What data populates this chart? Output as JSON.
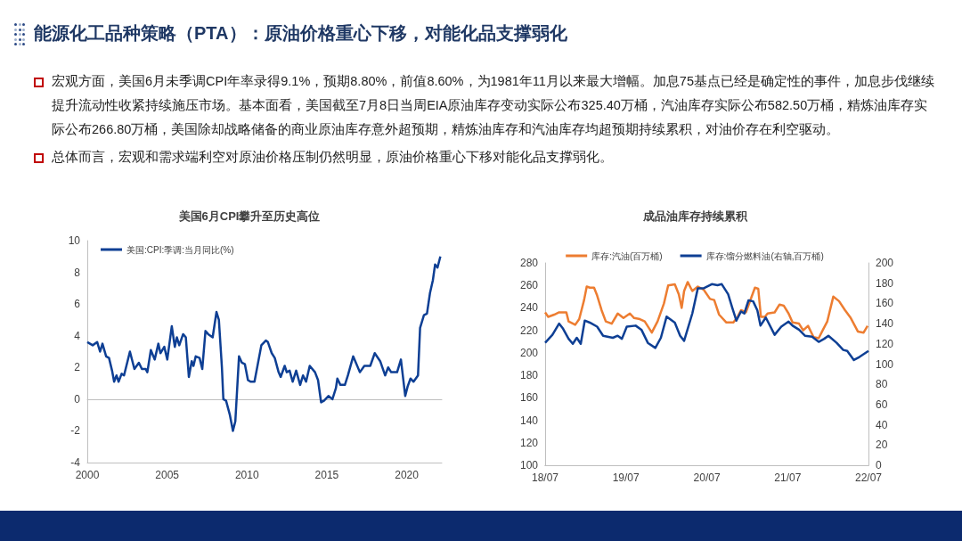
{
  "chart_data": [
    {
      "type": "other",
      "title": "能源化工品种策略（PTA）：原油价格重心下移，对能化品支撑弱化",
      "annotations": [
        "宏观方面，美国6月未季调CPI年率录得9.1%，预期8.80%，前值8.60%，为1981年11月以来最大增幅。加息75基点已经是确定性的事件，加息步伐继续提升流动性收紧持续施压市场。基本面看，美国截至7月8日当周EIA原油库存变动实际公布325.40万桶，汽油库存实际公布582.50万桶，精炼油库存实际公布266.80万桶，美国除却战略储备的商业原油库存意外超预期，精炼油库存和汽油库存均超预期持续累积，对油价存在利空驱动。",
        "总体而言，宏观和需求端利空对原油价格压制仍然明显，原油价格重心下移对能化品支撑弱化。"
      ]
    },
    {
      "type": "line",
      "title": "美国6月CPI攀升至历史高位",
      "legend": "top left",
      "marker": "none",
      "xlim": [
        2000,
        2022.2
      ],
      "xticks": [
        2000,
        2005,
        2010,
        2015,
        2020
      ],
      "ylim": [
        -4,
        10
      ],
      "yticks": [
        -4,
        -2,
        0,
        2,
        4,
        6,
        8,
        10
      ],
      "x": [
        2000.0,
        2000.34,
        2000.62,
        2000.8,
        2000.95,
        2001.18,
        2001.36,
        2001.55,
        2001.68,
        2001.83,
        2001.96,
        2002.15,
        2002.3,
        2002.67,
        2002.95,
        2003.23,
        2003.42,
        2003.66,
        2003.76,
        2003.98,
        2004.22,
        2004.45,
        2004.58,
        2004.82,
        2005.01,
        2005.29,
        2005.48,
        2005.61,
        2005.76,
        2006.0,
        2006.17,
        2006.36,
        2006.54,
        2006.65,
        2006.79,
        2007.03,
        2007.2,
        2007.4,
        2007.57,
        2007.85,
        2008.09,
        2008.24,
        2008.43,
        2008.52,
        2008.69,
        2008.93,
        2009.12,
        2009.27,
        2009.5,
        2009.68,
        2009.87,
        2010.06,
        2010.24,
        2010.47,
        2010.9,
        2011.18,
        2011.31,
        2011.55,
        2011.74,
        2011.98,
        2012.11,
        2012.36,
        2012.49,
        2012.67,
        2012.86,
        2013.08,
        2013.33,
        2013.51,
        2013.7,
        2013.93,
        2014.26,
        2014.45,
        2014.64,
        2014.82,
        2015.1,
        2015.35,
        2015.57,
        2015.66,
        2015.85,
        2016.13,
        2016.32,
        2016.65,
        2017.07,
        2017.35,
        2017.72,
        2018.0,
        2018.34,
        2018.65,
        2018.84,
        2019.03,
        2019.4,
        2019.64,
        2019.91,
        2020.06,
        2020.24,
        2020.43,
        2020.71,
        2020.84,
        2021.08,
        2021.27,
        2021.46,
        2021.64,
        2021.78,
        2021.93,
        2022.11
      ],
      "series": [
        {
          "name": "美国:CPI:季调:当月同比(%)",
          "color": "#0e3f94",
          "values": [
            3.6,
            3.4,
            3.6,
            3.0,
            3.5,
            2.7,
            2.6,
            1.8,
            1.1,
            1.5,
            1.1,
            1.6,
            1.5,
            3.0,
            1.9,
            2.3,
            1.9,
            1.9,
            1.7,
            3.1,
            2.5,
            3.5,
            2.9,
            3.3,
            2.5,
            4.6,
            3.3,
            3.9,
            3.4,
            4.1,
            3.9,
            1.4,
            2.4,
            2.1,
            2.7,
            2.6,
            1.9,
            4.3,
            4.1,
            3.9,
            5.5,
            5.0,
            2.0,
            0.0,
            -0.1,
            -1.0,
            -2.0,
            -1.4,
            2.7,
            2.3,
            2.2,
            1.2,
            1.1,
            1.1,
            3.4,
            3.7,
            3.6,
            2.9,
            2.6,
            1.7,
            1.4,
            2.1,
            1.7,
            1.8,
            1.1,
            1.8,
            0.9,
            1.5,
            1.1,
            2.1,
            1.7,
            1.2,
            -0.2,
            -0.1,
            0.2,
            0.0,
            0.7,
            1.3,
            0.9,
            0.9,
            1.5,
            2.7,
            1.7,
            2.1,
            2.1,
            2.9,
            2.4,
            1.5,
            2.0,
            1.7,
            1.7,
            2.5,
            0.2,
            0.8,
            1.3,
            1.1,
            1.5,
            4.5,
            5.3,
            5.4,
            6.7,
            7.5,
            8.5,
            8.3,
            9.0
          ]
        }
      ]
    },
    {
      "type": "line",
      "title": "成品油库存持续累积",
      "legend": "top",
      "marker": "none",
      "xlim": [
        "2018-07-01",
        "2022-07-01"
      ],
      "xticks": [
        {
          "value": "2018-07-01",
          "label": "18/07"
        },
        {
          "value": "2019-07-01",
          "label": "19/07"
        },
        {
          "value": "2020-07-01",
          "label": "20/07"
        },
        {
          "value": "2021-07-01",
          "label": "21/07"
        },
        {
          "value": "2022-07-01",
          "label": "22/07"
        }
      ],
      "ylim": [
        100,
        280
      ],
      "yticks": [
        100,
        120,
        140,
        160,
        180,
        200,
        220,
        240,
        260,
        280
      ],
      "y2lim": [
        0,
        200
      ],
      "y2ticks": [
        0,
        20,
        40,
        60,
        80,
        100,
        120,
        140,
        160,
        180,
        200
      ],
      "series": [
        {
          "name": "库存:汽油(百万桶)",
          "color": "#ed7d31",
          "x": [
            "2018-07-01",
            "2018-07-15",
            "2018-08-11",
            "2018-09-02",
            "2018-09-20",
            "2018-10-05",
            "2018-10-15",
            "2018-11-14",
            "2018-12-02",
            "2018-12-24",
            "2019-01-05",
            "2019-01-19",
            "2019-02-07",
            "2019-02-21",
            "2019-03-13",
            "2019-04-01",
            "2019-04-28",
            "2019-05-25",
            "2019-06-20",
            "2019-07-19",
            "2019-08-07",
            "2019-09-02",
            "2019-09-24",
            "2019-10-26",
            "2019-11-21",
            "2019-12-20",
            "2020-01-08",
            "2020-02-07",
            "2020-02-25",
            "2020-03-09",
            "2020-03-20",
            "2020-04-05",
            "2020-04-26",
            "2020-05-21",
            "2020-06-17",
            "2020-07-15",
            "2020-08-03",
            "2020-08-25",
            "2020-09-27",
            "2020-10-28",
            "2020-11-14",
            "2020-12-02",
            "2020-12-24",
            "2021-02-03",
            "2021-02-18",
            "2021-03-02",
            "2021-03-20",
            "2021-04-01",
            "2021-05-03",
            "2021-05-25",
            "2021-06-13",
            "2021-07-05",
            "2021-07-23",
            "2021-08-21",
            "2021-09-09",
            "2021-10-01",
            "2021-10-26",
            "2021-11-18",
            "2021-12-06",
            "2021-12-27",
            "2022-01-23",
            "2022-02-18",
            "2022-03-17",
            "2022-04-12",
            "2022-05-14",
            "2022-06-09",
            "2022-06-27"
          ],
          "values": [
            236,
            232,
            234,
            236,
            236,
            236,
            228,
            225,
            230,
            247,
            259,
            258,
            258,
            251,
            238,
            228,
            226,
            235,
            231,
            235,
            231,
            230,
            228,
            218,
            228,
            244,
            260,
            261,
            252,
            240,
            255,
            263,
            255,
            259,
            256,
            248,
            247,
            234,
            227,
            227,
            231,
            238,
            236,
            258,
            257,
            232,
            232,
            235,
            236,
            243,
            242,
            235,
            227,
            226,
            220,
            224,
            214,
            213,
            220,
            228,
            250,
            246,
            238,
            231,
            219,
            218,
            224
          ]
        },
        {
          "name": "库存:馏分燃料油(右轴,百万桶)",
          "color": "#0e3f94",
          "axis": "y2",
          "x": [
            "2018-07-01",
            "2018-08-03",
            "2018-09-02",
            "2018-09-20",
            "2018-10-15",
            "2018-11-03",
            "2018-11-21",
            "2018-12-09",
            "2018-12-27",
            "2019-01-19",
            "2019-02-21",
            "2019-03-20",
            "2019-05-03",
            "2019-05-25",
            "2019-06-13",
            "2019-07-05",
            "2019-08-14",
            "2019-09-09",
            "2019-10-08",
            "2019-11-11",
            "2019-12-06",
            "2020-01-01",
            "2020-02-07",
            "2020-03-02",
            "2020-03-20",
            "2020-04-26",
            "2020-05-21",
            "2020-06-17",
            "2020-07-23",
            "2020-08-18",
            "2020-09-06",
            "2020-10-05",
            "2020-10-23",
            "2020-11-11",
            "2020-12-02",
            "2020-12-17",
            "2021-01-05",
            "2021-01-26",
            "2021-02-14",
            "2021-02-28",
            "2021-03-24",
            "2021-05-03",
            "2021-06-02",
            "2021-07-05",
            "2021-07-23",
            "2021-08-21",
            "2021-09-17",
            "2021-10-19",
            "2021-11-18",
            "2021-12-13",
            "2022-01-01",
            "2022-02-07",
            "2022-03-09",
            "2022-03-27",
            "2022-04-26",
            "2022-05-21",
            "2022-07-01"
          ],
          "values": [
            121,
            129,
            140,
            135,
            125,
            120,
            126,
            120,
            143,
            141,
            137,
            128,
            126,
            128,
            125,
            137,
            138,
            134,
            121,
            116,
            126,
            147,
            141,
            128,
            123,
            150,
            175,
            175,
            179,
            178,
            179,
            169,
            156,
            143,
            152,
            150,
            163,
            162,
            153,
            138,
            146,
            129,
            137,
            142,
            138,
            134,
            128,
            127,
            122,
            125,
            128,
            121,
            114,
            113,
            104,
            107,
            113
          ]
        }
      ]
    }
  ]
}
